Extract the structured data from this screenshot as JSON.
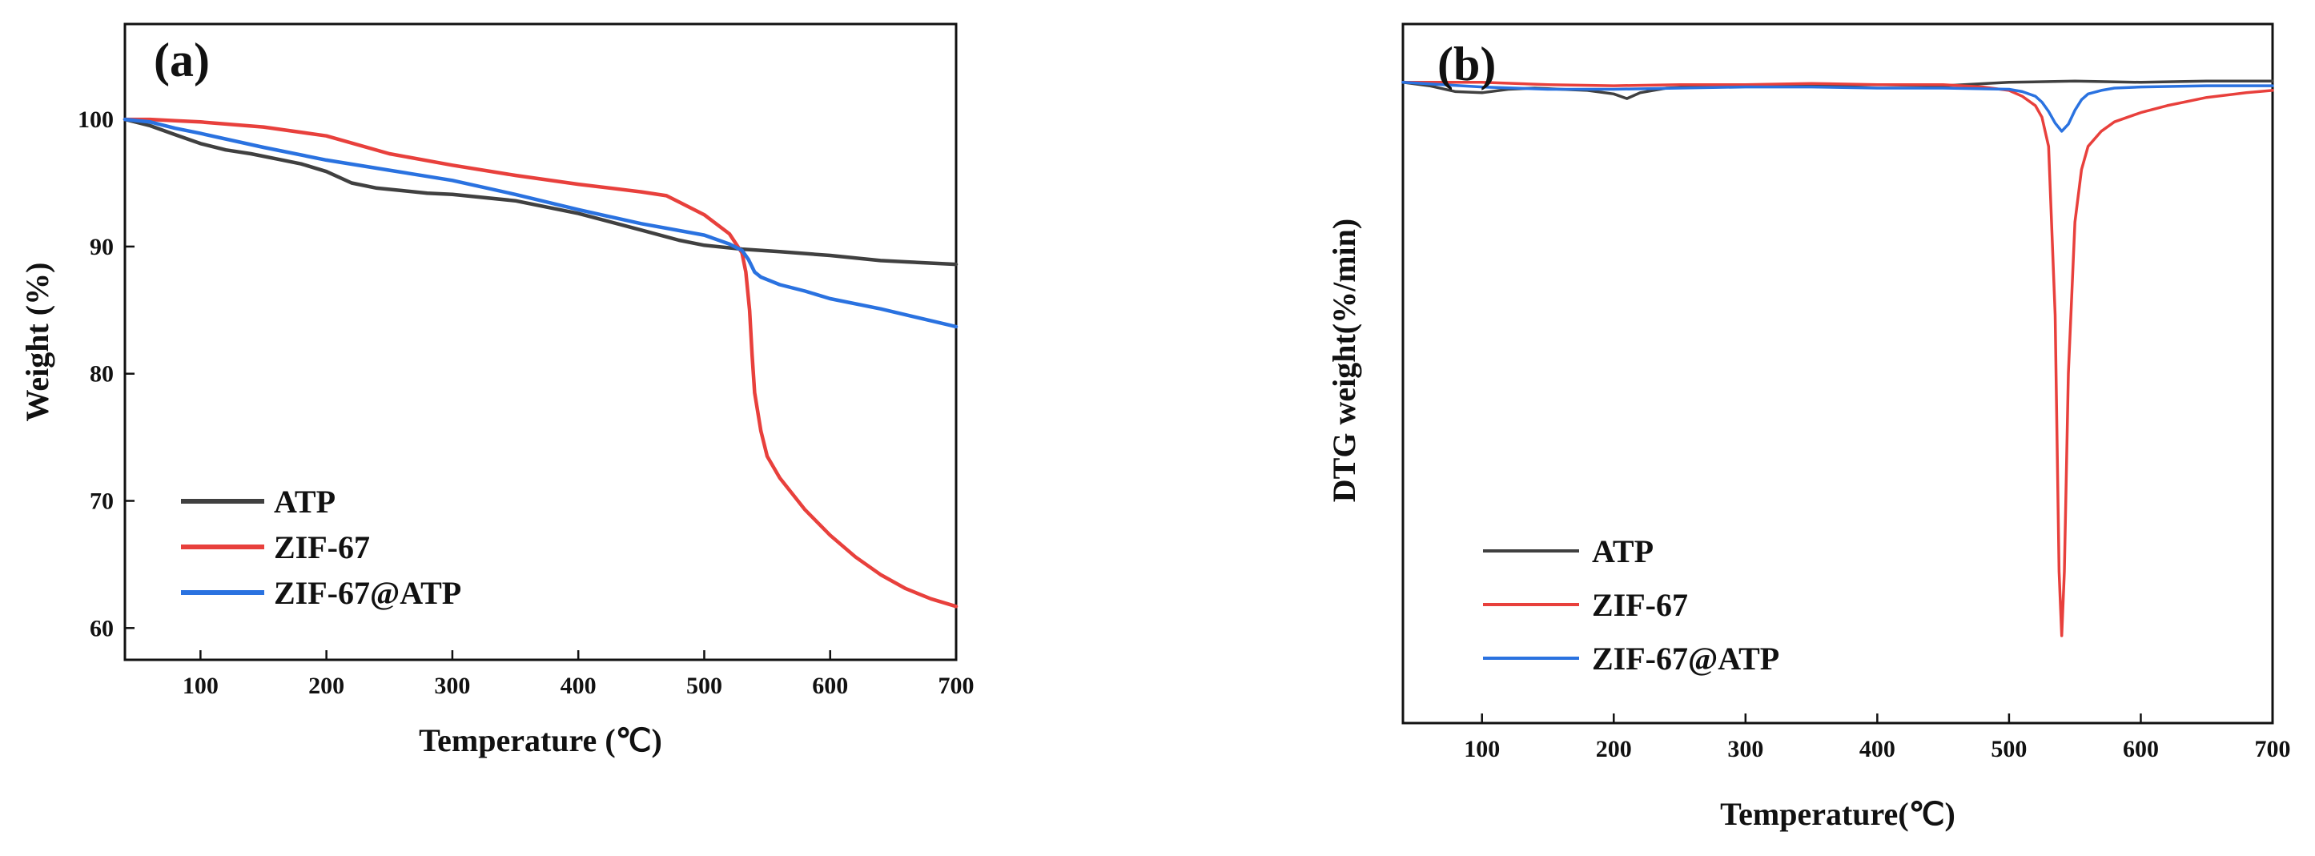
{
  "chart_data": [
    {
      "type": "line",
      "panel_label": "(a)",
      "title": "",
      "xlabel": "Temperature (℃)",
      "ylabel": "Weight (%)",
      "xlim": [
        40,
        700
      ],
      "ylim": [
        57.5,
        107.5
      ],
      "xticks": [
        100,
        200,
        300,
        400,
        500,
        600,
        700
      ],
      "yticks": [
        60,
        70,
        80,
        90,
        100
      ],
      "legend_position": "bottom-left",
      "series": [
        {
          "name": "ATP",
          "color": "#404040",
          "x": [
            40,
            60,
            80,
            100,
            120,
            140,
            160,
            180,
            200,
            220,
            240,
            260,
            280,
            300,
            350,
            400,
            450,
            480,
            500,
            530,
            560,
            600,
            640,
            660,
            700
          ],
          "y": [
            100,
            99.5,
            98.8,
            98.1,
            97.6,
            97.3,
            96.9,
            96.5,
            95.9,
            95.0,
            94.6,
            94.4,
            94.2,
            94.1,
            93.6,
            92.6,
            91.3,
            90.5,
            90.1,
            89.8,
            89.6,
            89.3,
            88.9,
            88.8,
            88.6
          ]
        },
        {
          "name": "ZIF-67",
          "color": "#e8403c",
          "x": [
            40,
            60,
            80,
            100,
            150,
            200,
            250,
            300,
            350,
            400,
            450,
            470,
            480,
            500,
            520,
            530,
            533,
            536,
            538,
            540,
            545,
            550,
            560,
            580,
            600,
            620,
            640,
            660,
            680,
            700
          ],
          "y": [
            100,
            100,
            99.9,
            99.8,
            99.4,
            98.7,
            97.3,
            96.4,
            95.6,
            94.9,
            94.3,
            94.0,
            93.5,
            92.5,
            91.0,
            89.5,
            88.0,
            85.0,
            81.5,
            78.5,
            75.5,
            73.5,
            71.8,
            69.3,
            67.3,
            65.6,
            64.2,
            63.1,
            62.3,
            61.7
          ]
        },
        {
          "name": "ZIF-67@ATP",
          "color": "#2a72e0",
          "x": [
            40,
            60,
            80,
            100,
            150,
            200,
            250,
            300,
            350,
            400,
            450,
            500,
            520,
            530,
            535,
            540,
            545,
            550,
            560,
            580,
            600,
            640,
            700
          ],
          "y": [
            100,
            99.8,
            99.3,
            98.9,
            97.8,
            96.8,
            96.0,
            95.2,
            94.1,
            92.9,
            91.8,
            90.9,
            90.2,
            89.7,
            89.0,
            88.0,
            87.6,
            87.4,
            87.0,
            86.5,
            85.9,
            85.1,
            83.7
          ]
        }
      ]
    },
    {
      "type": "line",
      "panel_label": "(b)",
      "title": "",
      "xlabel": "Temperature(℃)",
      "ylabel": "DTG weight(%/min)",
      "xlim": [
        40,
        700
      ],
      "ylim": [
        -55,
        5
      ],
      "xticks": [
        100,
        200,
        300,
        400,
        500,
        600,
        700
      ],
      "yticks": [],
      "legend_position": "bottom-left",
      "series": [
        {
          "name": "ATP",
          "color": "#404040",
          "x": [
            40,
            60,
            80,
            100,
            120,
            140,
            160,
            180,
            200,
            210,
            220,
            240,
            260,
            280,
            300,
            350,
            400,
            450,
            500,
            550,
            600,
            650,
            700
          ],
          "y": [
            0,
            -0.3,
            -0.8,
            -0.9,
            -0.6,
            -0.5,
            -0.6,
            -0.7,
            -1.0,
            -1.4,
            -0.9,
            -0.5,
            -0.4,
            -0.3,
            -0.3,
            -0.3,
            -0.2,
            -0.3,
            0,
            0.1,
            0,
            0.1,
            0.1
          ]
        },
        {
          "name": "ZIF-67",
          "color": "#e8403c",
          "x": [
            40,
            100,
            150,
            200,
            250,
            300,
            350,
            400,
            450,
            480,
            500,
            510,
            520,
            525,
            530,
            535,
            538,
            540,
            542,
            545,
            550,
            555,
            560,
            570,
            580,
            600,
            620,
            650,
            680,
            700
          ],
          "y": [
            0,
            0,
            -0.2,
            -0.3,
            -0.2,
            -0.2,
            -0.1,
            -0.2,
            -0.2,
            -0.4,
            -0.7,
            -1.2,
            -2.0,
            -3.0,
            -5.5,
            -20.0,
            -42.0,
            -47.5,
            -42.0,
            -25.0,
            -12.0,
            -7.5,
            -5.5,
            -4.2,
            -3.4,
            -2.6,
            -2.0,
            -1.3,
            -0.9,
            -0.7
          ]
        },
        {
          "name": "ZIF-67@ATP",
          "color": "#2a72e0",
          "x": [
            40,
            100,
            150,
            200,
            250,
            300,
            350,
            400,
            450,
            500,
            510,
            520,
            525,
            530,
            535,
            540,
            545,
            550,
            555,
            560,
            570,
            580,
            600,
            650,
            700
          ],
          "y": [
            0,
            -0.4,
            -0.6,
            -0.6,
            -0.5,
            -0.4,
            -0.4,
            -0.5,
            -0.5,
            -0.6,
            -0.8,
            -1.2,
            -1.7,
            -2.5,
            -3.5,
            -4.2,
            -3.6,
            -2.4,
            -1.5,
            -1.0,
            -0.7,
            -0.5,
            -0.4,
            -0.3,
            -0.3
          ]
        }
      ]
    }
  ]
}
